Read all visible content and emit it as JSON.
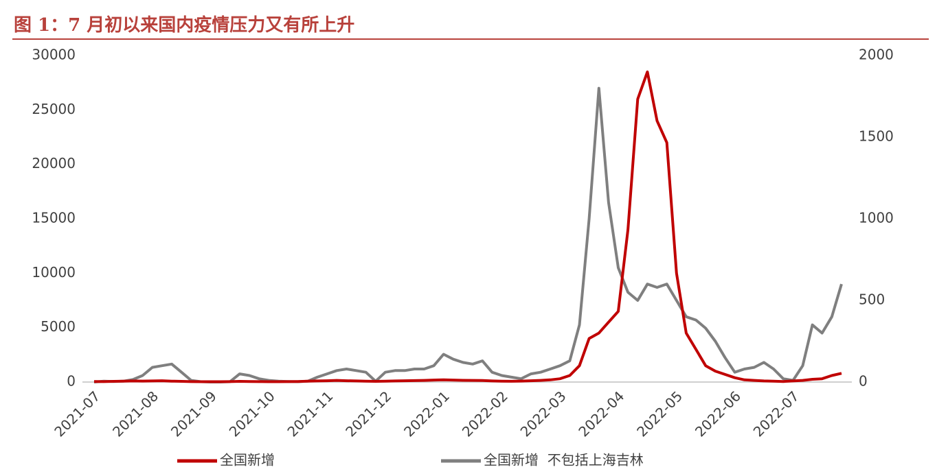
{
  "chart_data": {
    "type": "line",
    "title": "图 1：7 月初以来国内疫情压力又有所上升",
    "categories": [
      "2021-07",
      null,
      null,
      null,
      null,
      null,
      "2021-08",
      null,
      null,
      null,
      null,
      null,
      "2021-09",
      null,
      null,
      null,
      null,
      null,
      "2021-10",
      null,
      null,
      null,
      null,
      null,
      "2021-11",
      null,
      null,
      null,
      null,
      null,
      "2021-12",
      null,
      null,
      null,
      null,
      null,
      "2022-01",
      null,
      null,
      null,
      null,
      null,
      "2022-02",
      null,
      null,
      null,
      null,
      null,
      "2022-03",
      null,
      null,
      null,
      null,
      null,
      "2022-04",
      null,
      null,
      null,
      null,
      null,
      "2022-05",
      null,
      null,
      null,
      null,
      null,
      "2022-06",
      null,
      null,
      null,
      null,
      null,
      "2022-07",
      null,
      null,
      null,
      null,
      null
    ],
    "series": [
      {
        "name": "全国新增",
        "color": "#c00000",
        "axis": "y",
        "values": [
          50,
          40,
          60,
          80,
          100,
          90,
          100,
          120,
          80,
          60,
          40,
          30,
          30,
          30,
          40,
          60,
          50,
          40,
          30,
          30,
          40,
          50,
          80,
          100,
          120,
          150,
          120,
          100,
          80,
          60,
          80,
          100,
          120,
          130,
          150,
          180,
          200,
          180,
          160,
          150,
          140,
          100,
          80,
          70,
          90,
          120,
          150,
          200,
          300,
          600,
          1500,
          4000,
          4500,
          5500,
          6500,
          14000,
          26000,
          28500,
          24000,
          22000,
          10000,
          4500,
          3000,
          1500,
          1000,
          700,
          400,
          200,
          150,
          100,
          80,
          50,
          100,
          150,
          250,
          300,
          600,
          800
        ]
      },
      {
        "name": "全国新增  不包括上海吉林",
        "color": "#7f7f7f",
        "axis": "y2",
        "values": [
          0,
          5,
          3,
          5,
          15,
          40,
          90,
          100,
          110,
          60,
          10,
          2,
          0,
          0,
          2,
          50,
          40,
          20,
          10,
          5,
          3,
          2,
          5,
          30,
          50,
          70,
          80,
          70,
          60,
          5,
          60,
          70,
          70,
          80,
          80,
          100,
          170,
          140,
          120,
          110,
          130,
          60,
          40,
          30,
          20,
          50,
          60,
          80,
          100,
          130,
          350,
          1000,
          1800,
          1100,
          700,
          550,
          500,
          600,
          580,
          600,
          500,
          400,
          380,
          330,
          250,
          150,
          60,
          80,
          90,
          120,
          80,
          20,
          10,
          100,
          350,
          300,
          400,
          600
        ]
      }
    ],
    "ylim": [
      0,
      30000
    ],
    "yticks": [
      0,
      5000,
      10000,
      15000,
      20000,
      25000,
      30000
    ],
    "y2lim": [
      0,
      2000
    ],
    "y2ticks": [
      0,
      500,
      1000,
      1500,
      2000
    ]
  }
}
